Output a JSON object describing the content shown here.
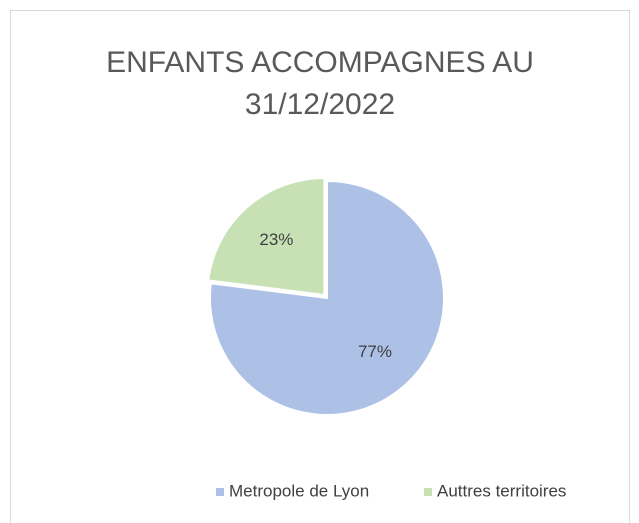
{
  "chart_data": {
    "type": "pie",
    "title": "ENFANTS ACCOMPAGNES AU 31/12/2022",
    "categories": [
      "Metropole de Lyon",
      "Auttres territoires"
    ],
    "values": [
      77,
      23
    ],
    "value_labels": [
      "77%",
      "23%"
    ],
    "colors": [
      "#adc0e6",
      "#c7e1b5"
    ],
    "legend": "bottom"
  }
}
